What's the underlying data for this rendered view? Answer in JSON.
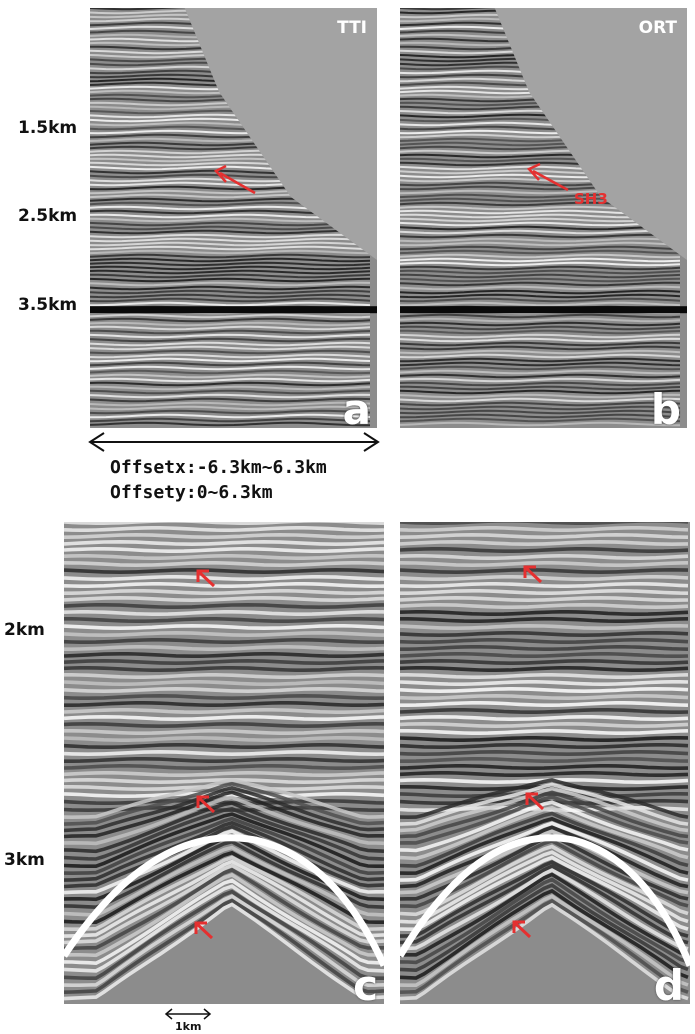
{
  "panels": [
    {
      "id": "a",
      "title": "TTI",
      "letter": "a"
    },
    {
      "id": "b",
      "title": "ORT",
      "letter": "b",
      "annotation": "SH3"
    },
    {
      "id": "c",
      "letter": "c"
    },
    {
      "id": "d",
      "letter": "d"
    }
  ],
  "depth_labels_top": [
    "1.5km",
    "2.5km",
    "3.5km"
  ],
  "depth_labels_bottom": [
    "2km",
    "3km"
  ],
  "offset": {
    "x": "Offsetx:-6.3km~6.3km",
    "y": "Offsety:0~6.3km"
  },
  "scale_bar": "1km",
  "colors": {
    "arrow": "#e53030"
  }
}
